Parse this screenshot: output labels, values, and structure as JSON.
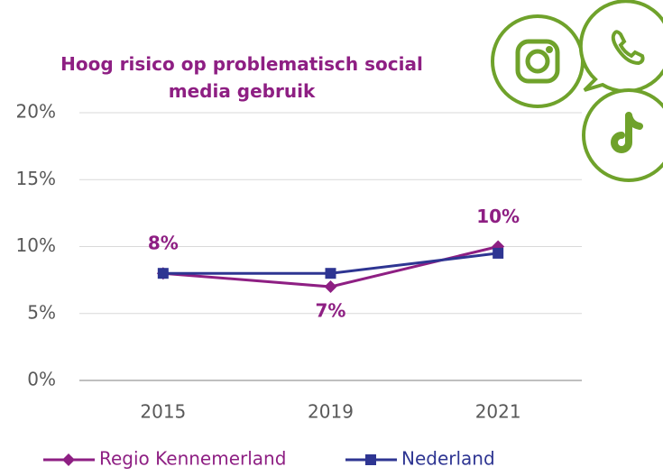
{
  "chart_data": {
    "type": "line",
    "title": "Hoog risico op problematisch social media gebruik",
    "categories": [
      "2015",
      "2019",
      "2021"
    ],
    "series": [
      {
        "name": "Regio Kennemerland",
        "color": "#8e1f83",
        "values": [
          8,
          7,
          10
        ],
        "value_labels": [
          "8%",
          "7%",
          "10%"
        ]
      },
      {
        "name": "Nederland",
        "color": "#2e3592",
        "values": [
          8,
          8,
          9.5
        ]
      }
    ],
    "ylim": [
      0,
      20
    ],
    "yticks": [
      {
        "value": 0,
        "label": "0%"
      },
      {
        "value": 5,
        "label": "5%"
      },
      {
        "value": 10,
        "label": "10%"
      },
      {
        "value": 15,
        "label": "15%"
      },
      {
        "value": 20,
        "label": "20%"
      }
    ],
    "grid": true
  }
}
